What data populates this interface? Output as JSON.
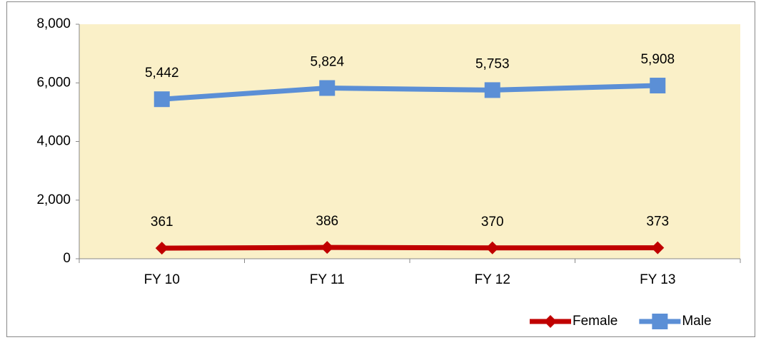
{
  "chart_data": {
    "type": "line",
    "categories": [
      "FY 10",
      "FY 11",
      "FY 12",
      "FY 13"
    ],
    "series": [
      {
        "name": "Female",
        "color": "#c00000",
        "marker": "diamond",
        "values": [
          361,
          386,
          370,
          373
        ],
        "value_labels": [
          "361",
          "386",
          "370",
          "373"
        ]
      },
      {
        "name": "Male",
        "color": "#5b8fd6",
        "marker": "square",
        "values": [
          5442,
          5824,
          5753,
          5908
        ],
        "value_labels": [
          "5,442",
          "5,824",
          "5,753",
          "5,908"
        ]
      }
    ],
    "ylim": [
      0,
      8000
    ],
    "yticks": [
      0,
      {
        "value": 2000,
        "label": "2,000"
      },
      {
        "value": 4000,
        "label": "4,000"
      },
      {
        "value": 6000,
        "label": "6,000"
      },
      {
        "value": 8000,
        "label": "8,000"
      }
    ],
    "grid": false,
    "legend": "lower right",
    "plot_background": "#faf0c8"
  }
}
